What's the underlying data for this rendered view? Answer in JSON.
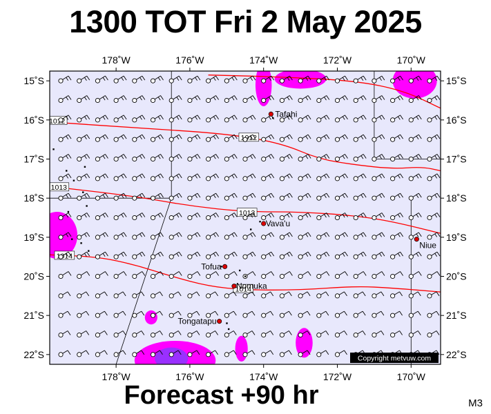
{
  "title": "1300 TOT Fri 2 May 2025",
  "forecast": "Forecast +90 hr",
  "model": "M3",
  "copyright": "Copyright metvuw.com",
  "map": {
    "lon_range": [
      -179.8,
      -169.2
    ],
    "lat_range": [
      -22.25,
      -14.75
    ],
    "lon_ticks": [
      "178˚W",
      "176˚W",
      "174˚W",
      "172˚W",
      "170˚W"
    ],
    "lat_ticks": [
      "15˚S",
      "16˚S",
      "17˚S",
      "18˚S",
      "19˚S",
      "20˚S",
      "21˚S",
      "22˚S"
    ],
    "colors": {
      "ocean": "#e8e8fc",
      "isobar": "#ff0000",
      "rain_light": "#ff00ff",
      "rain_heavy": "#9a30ff",
      "land_marker": "#dd0000"
    },
    "isobars": [
      {
        "label": "1012",
        "points": [
          [
            -179.8,
            -16.05
          ],
          [
            -177.5,
            -16.2
          ],
          [
            -175,
            -16.35
          ],
          [
            -173.5,
            -16.6
          ],
          [
            -172.5,
            -17.0
          ],
          [
            -171.5,
            -17.15
          ],
          [
            -170.5,
            -17.25
          ],
          [
            -169.7,
            -17.2
          ],
          [
            -169.2,
            -17.3
          ]
        ]
      },
      {
        "label": "1013",
        "points": [
          [
            -179.8,
            -17.7
          ],
          [
            -177.5,
            -17.95
          ],
          [
            -176,
            -18.2
          ],
          [
            -174.5,
            -18.35
          ],
          [
            -173,
            -18.35
          ],
          [
            -171.5,
            -18.45
          ],
          [
            -170.5,
            -18.6
          ],
          [
            -169.2,
            -18.9
          ]
        ]
      },
      {
        "label": "1014",
        "points": [
          [
            -179.8,
            -19.45
          ],
          [
            -178.5,
            -19.5
          ],
          [
            -177.5,
            -19.7
          ],
          [
            -176.5,
            -20.0
          ],
          [
            -175.5,
            -20.25
          ],
          [
            -174.5,
            -20.35
          ],
          [
            -173,
            -20.35
          ],
          [
            -171.5,
            -20.25
          ],
          [
            -170.5,
            -20.3
          ],
          [
            -169.2,
            -20.4
          ]
        ]
      },
      {
        "label": "",
        "points": [
          [
            -175.5,
            -14.85
          ],
          [
            -173.5,
            -14.9
          ],
          [
            -171.5,
            -15.0
          ],
          [
            -170.2,
            -15.25
          ],
          [
            -169.2,
            -15.7
          ]
        ]
      }
    ],
    "places": [
      {
        "name": "Tafahi",
        "lon": -173.8,
        "lat": -15.85
      },
      {
        "name": "Vava'u",
        "lon": -174.0,
        "lat": -18.65
      },
      {
        "name": "Niue",
        "lon": -169.85,
        "lat": -19.05
      },
      {
        "name": "Tofua",
        "lon": -175.05,
        "lat": -19.75
      },
      {
        "name": "Nomuka",
        "lon": -174.8,
        "lat": -20.25
      },
      {
        "name": "Tongatapu",
        "lon": -175.2,
        "lat": -21.15
      }
    ]
  }
}
